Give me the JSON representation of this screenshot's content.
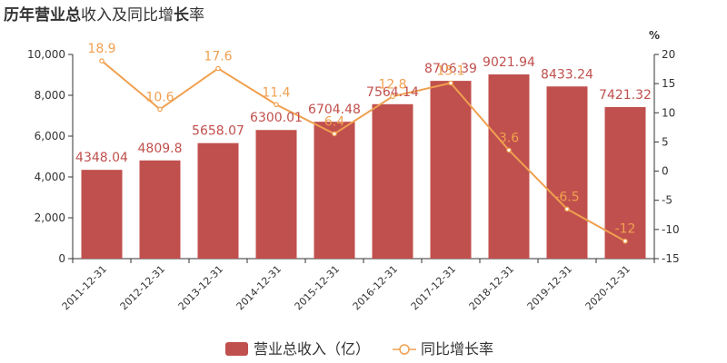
{
  "title": {
    "part1_bold": "历年",
    "part2": "营业总",
    "part3_bold": "收入",
    "part4": "及同比增",
    "part5_bold": "长",
    "part6": "率"
  },
  "colors": {
    "bar": "#c0504d",
    "line": "#f0a050",
    "axis": "#333333"
  },
  "chart_data": {
    "type": "bar",
    "categories": [
      "2011-12-31",
      "2012-12-31",
      "2013-12-31",
      "2014-12-31",
      "2015-12-31",
      "2016-12-31",
      "2017-12-31",
      "2018-12-31",
      "2019-12-31",
      "2020-12-31"
    ],
    "series": [
      {
        "name": "营业总收入（亿）",
        "type": "bar",
        "axis": "left",
        "values": [
          4348.04,
          4809.8,
          5658.07,
          6300.01,
          6704.48,
          7564.14,
          8706.39,
          9021.94,
          8433.24,
          7421.32
        ],
        "labels": [
          "4348.04",
          "4809.8",
          "5658.07",
          "6300.01",
          "6704.48",
          "7564.14",
          "8706.39",
          "9021.94",
          "8433.24",
          "7421.32"
        ]
      },
      {
        "name": "同比增长率",
        "type": "line",
        "axis": "right",
        "values": [
          18.9,
          10.6,
          17.6,
          11.4,
          6.4,
          12.8,
          15.1,
          3.6,
          -6.5,
          -12
        ],
        "labels": [
          "18.9",
          "10.6",
          "17.6",
          "11.4",
          "6.4",
          "12.8",
          "15.1",
          "3.6",
          "-6.5",
          "-12"
        ]
      }
    ],
    "left_axis": {
      "ylim": [
        0,
        10000
      ],
      "ticks": [
        0,
        2000,
        4000,
        6000,
        8000,
        10000
      ],
      "tick_labels": [
        "0",
        "2,000",
        "4,000",
        "6,000",
        "8,000",
        "10,000"
      ]
    },
    "right_axis": {
      "unit": "%",
      "ylim": [
        -15,
        20
      ],
      "ticks": [
        -15,
        -10,
        -5,
        0,
        5,
        10,
        15,
        20
      ],
      "tick_labels": [
        "-15",
        "-10",
        "-5",
        "0",
        "5",
        "10",
        "15",
        "20"
      ]
    },
    "grid": false,
    "legend": "bottom"
  }
}
